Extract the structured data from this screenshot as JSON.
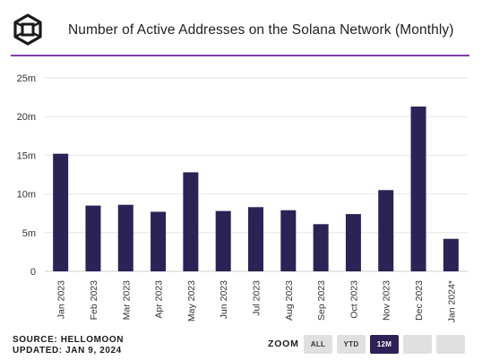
{
  "header": {
    "title": "Number of Active Addresses on the Solana Network (Monthly)"
  },
  "footer": {
    "source": "SOURCE: HELLOMOON",
    "updated": "UPDATED: JAN 9, 2024"
  },
  "zoom": {
    "label": "ZOOM",
    "options": [
      "ALL",
      "YTD",
      "12M",
      "",
      ""
    ],
    "active": "12M"
  },
  "colors": {
    "bar": "#2c2255",
    "accent_rule": "#7b3fb0",
    "grid": "#e6e6e6"
  },
  "chart_data": {
    "type": "bar",
    "categories": [
      "Jan 2023",
      "Feb 2023",
      "Mar 2023",
      "Apr 2023",
      "May 2023",
      "Jun 2023",
      "Jul 2023",
      "Aug 2023",
      "Sep 2023",
      "Oct 2023",
      "Nov 2023",
      "Dec 2023",
      "Jan 2024*"
    ],
    "values": [
      15.2,
      8.5,
      8.6,
      7.7,
      12.8,
      7.8,
      8.3,
      7.9,
      6.1,
      7.4,
      10.5,
      21.3,
      4.2
    ],
    "unit": "m",
    "yticks": [
      "0",
      "5m",
      "10m",
      "15m",
      "20m",
      "25m"
    ],
    "ytick_values": [
      0,
      5,
      10,
      15,
      20,
      25
    ],
    "ylim": [
      0,
      25
    ],
    "grid": true,
    "legend": "none"
  }
}
